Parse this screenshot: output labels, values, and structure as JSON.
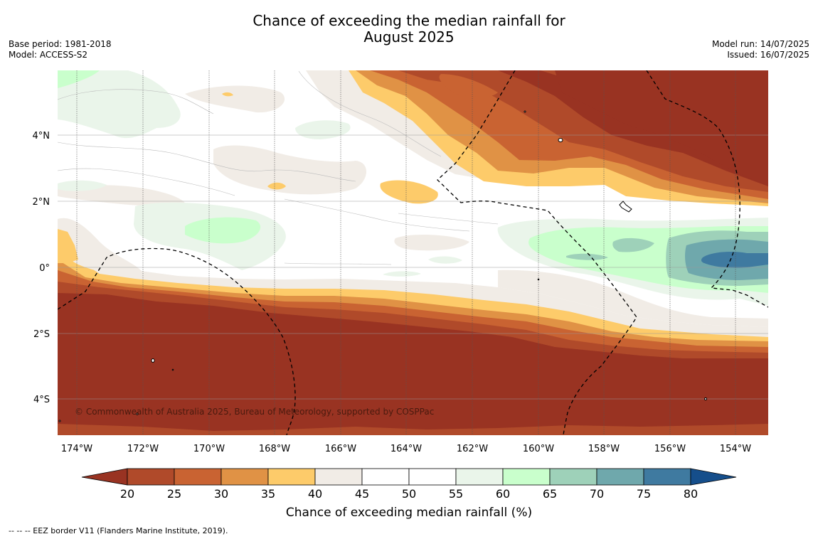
{
  "title": {
    "line1": "Chance of exceeding the median rainfall for",
    "line2": "August 2025"
  },
  "meta_left": {
    "base_period": "Base period: 1981-2018",
    "model": "Model: ACCESS-S2"
  },
  "meta_right": {
    "model_run": "Model run: 14/07/2025",
    "issued": "Issued: 16/07/2025"
  },
  "map": {
    "lon_labels": [
      "174°W",
      "172°W",
      "170°W",
      "168°W",
      "166°W",
      "164°W",
      "162°W",
      "160°W",
      "158°W",
      "156°W",
      "154°W"
    ],
    "lat_labels": [
      "4°N",
      "2°N",
      "0°",
      "2°S",
      "4°S"
    ],
    "lon_range_deg_east": [
      -174.6,
      -153.05
    ],
    "lat_range_deg": [
      -5.15,
      5.95
    ],
    "copyright": "© Commonwealth of Australia 2025, Bureau of Meteorology, supported by COSPPac"
  },
  "colorbar": {
    "label": "Chance of exceeding median rainfall (%)",
    "ticks": [
      "20",
      "25",
      "30",
      "35",
      "40",
      "45",
      "50",
      "55",
      "60",
      "65",
      "70",
      "75",
      "80"
    ],
    "colors": {
      "below_20": "#993322",
      "c20_25": "#b04a2a",
      "c25_30": "#c96332",
      "c30_35": "#e09245",
      "c35_40": "#fdcb6a",
      "c40_45": "#f1ece6",
      "c45_50": "#ffffff",
      "c50_55": "#ffffff",
      "c55_60": "#eaf5ea",
      "c60_65": "#c9ffcc",
      "c65_70": "#9ed1b9",
      "c70_75": "#6fa8ac",
      "c75_80": "#3f7aa0",
      "above_80": "#154e8b"
    }
  },
  "footnote": "--  --  -- EEZ border V11 (Flanders Marine Institute, 2019)."
}
